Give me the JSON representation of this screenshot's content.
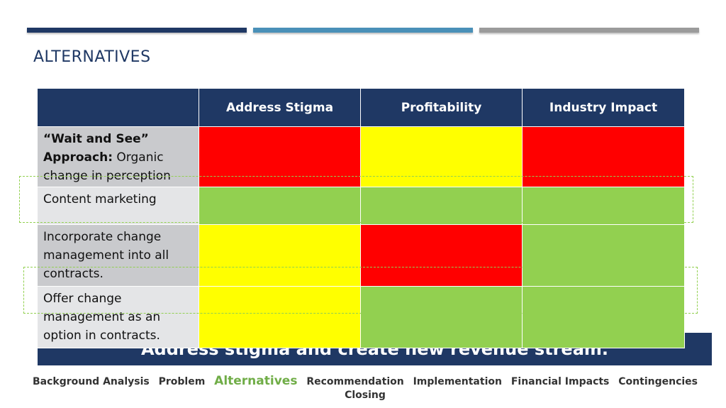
{
  "slide": {
    "title": "ALTERNATIVES",
    "conclusion": "Address stigma and create new revenue stream.",
    "colors": {
      "navy": "#1f3864",
      "blue": "#4a90b8",
      "gray": "#9b9b9b",
      "red": "#ff0000",
      "yellow": "#ffff00",
      "green": "#92d050"
    }
  },
  "table": {
    "headers": [
      "",
      "Address Stigma",
      "Profitability",
      "Industry Impact"
    ],
    "rows": [
      {
        "bold": "“Wait and See” Approach:",
        "text": " Organic change in perception",
        "ratings": [
          "red",
          "yellow",
          "red"
        ]
      },
      {
        "bold": "",
        "text": "Content marketing",
        "ratings": [
          "green",
          "green",
          "green"
        ]
      },
      {
        "bold": "",
        "text": "Incorporate change management into all contracts.",
        "ratings": [
          "yellow",
          "red",
          "green"
        ]
      },
      {
        "bold": "",
        "text": "Offer change management as an option in contracts.",
        "ratings": [
          "yellow",
          "green",
          "green"
        ]
      }
    ]
  },
  "nav": {
    "items": [
      "Background Analysis",
      "Problem",
      "Alternatives",
      "Recommendation",
      "Implementation",
      "Financial Impacts",
      "Contingencies",
      "Closing"
    ],
    "active": "Alternatives"
  }
}
